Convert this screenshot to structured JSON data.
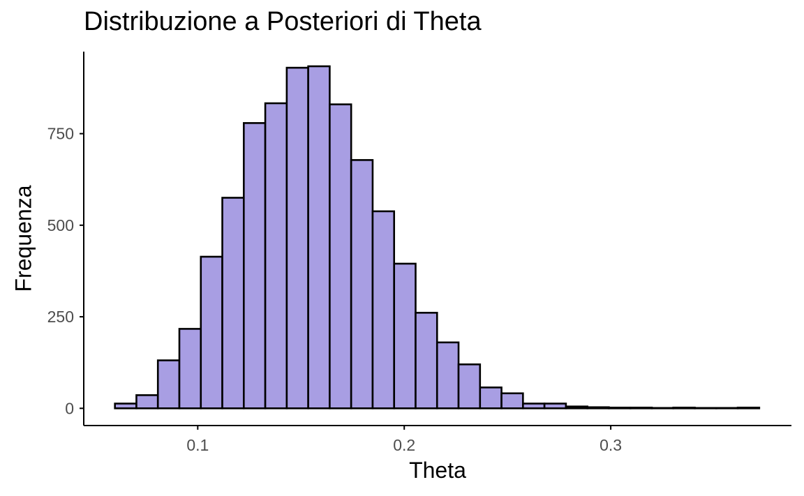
{
  "chart_data": {
    "type": "bar",
    "title": "Distribuzione a Posteriori di Theta",
    "xlabel": "Theta",
    "ylabel": "Frequenza",
    "bar_color": "#a89ee3",
    "bar_edge_color": "#000000",
    "axis_color": "#000000",
    "tick_label_color": "#4d4d4d",
    "grid": false,
    "xlim": [
      0.0448,
      0.3875
    ],
    "ylim": [
      -47,
      974
    ],
    "bin_start": 0.0599,
    "bin_width": 0.0104,
    "x_ticks": [
      0.1,
      0.2,
      0.3
    ],
    "x_tick_labels": [
      "0.1",
      "0.2",
      "0.3"
    ],
    "y_ticks": [
      0,
      250,
      500,
      750
    ],
    "y_tick_labels": [
      "0",
      "250",
      "500",
      "750"
    ],
    "values": [
      13,
      36,
      131,
      217,
      414,
      575,
      779,
      833,
      930,
      934,
      830,
      678,
      538,
      395,
      261,
      180,
      120,
      57,
      41,
      13,
      13,
      5,
      3,
      2,
      2,
      1,
      2,
      1,
      1,
      2
    ]
  }
}
